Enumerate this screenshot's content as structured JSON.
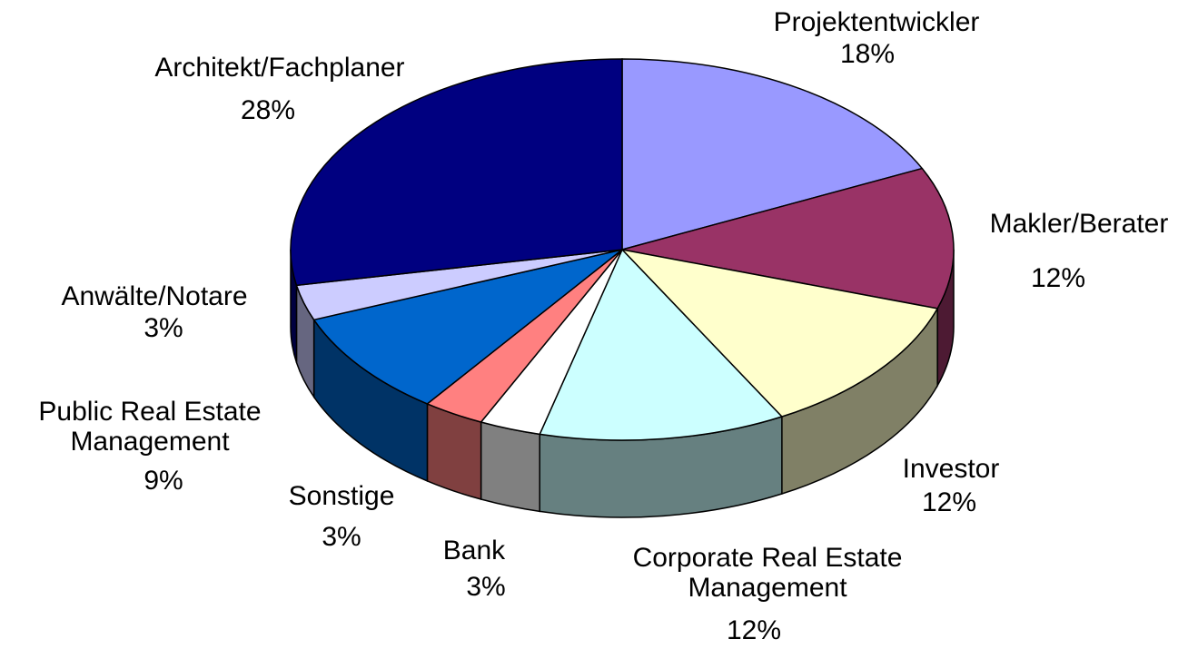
{
  "chart_data": {
    "type": "pie",
    "categories": [
      "Projektentwickler",
      "Makler/Berater",
      "Investor",
      "Corporate Real Estate Management",
      "Bank",
      "Sonstige",
      "Public Real Estate Management",
      "Anwälte/Notare",
      "Architekt/Fachplaner"
    ],
    "values": [
      18,
      12,
      12,
      12,
      3,
      3,
      9,
      3,
      28
    ],
    "value_labels": [
      "18%",
      "12%",
      "12%",
      "12%",
      "3%",
      "3%",
      "9%",
      "3%",
      "28%"
    ],
    "colors": [
      "#9999ff",
      "#993366",
      "#ffffcc",
      "#ccffff",
      "#ffffff",
      "#ff8080",
      "#0066cc",
      "#ccccff",
      "#000080"
    ]
  }
}
